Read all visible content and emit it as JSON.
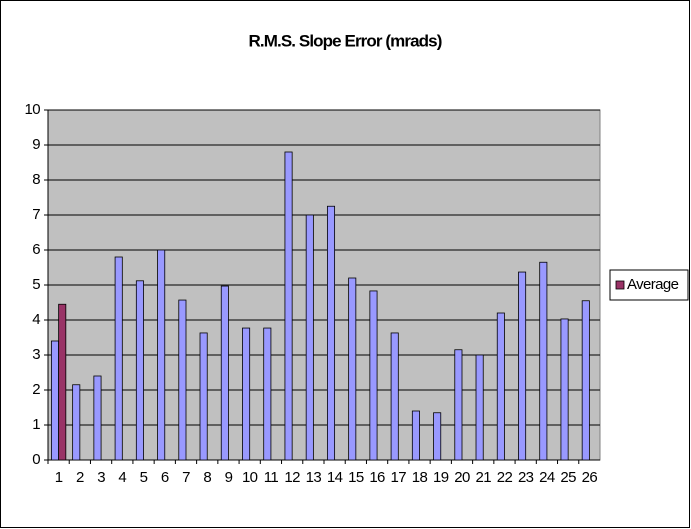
{
  "chart_data": {
    "type": "bar",
    "title": "R.M.S. Slope Error (mrads)",
    "categories": [
      "1",
      "2",
      "3",
      "4",
      "5",
      "6",
      "7",
      "8",
      "9",
      "10",
      "11",
      "12",
      "13",
      "14",
      "15",
      "16",
      "17",
      "18",
      "19",
      "20",
      "21",
      "22",
      "23",
      "24",
      "25",
      "26"
    ],
    "series": [
      {
        "color": "#9999ff",
        "values": [
          3.4,
          2.15,
          2.4,
          5.8,
          5.12,
          6.0,
          4.57,
          3.63,
          4.97,
          3.77,
          3.77,
          8.8,
          7.0,
          7.25,
          5.2,
          4.83,
          3.63,
          1.4,
          1.35,
          3.15,
          3.0,
          4.2,
          5.37,
          5.65,
          4.03,
          4.55
        ]
      },
      {
        "name": "Average",
        "color": "#993366",
        "values": [
          4.45,
          null,
          null,
          null,
          null,
          null,
          null,
          null,
          null,
          null,
          null,
          null,
          null,
          null,
          null,
          null,
          null,
          null,
          null,
          null,
          null,
          null,
          null,
          null,
          null,
          null
        ]
      }
    ],
    "ylim": [
      0,
      10
    ],
    "yticks": [
      0,
      1,
      2,
      3,
      4,
      5,
      6,
      7,
      8,
      9,
      10
    ],
    "grid": true,
    "legend": "right",
    "plot_background": "#c0c0c0"
  }
}
